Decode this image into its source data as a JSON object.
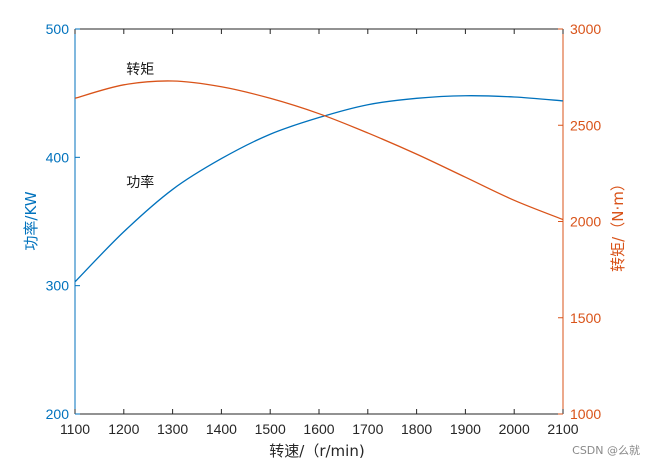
{
  "chart_data": {
    "type": "line",
    "dual_axis": true,
    "xlabel": "转速/（r/min)",
    "xlim": [
      1100,
      2100
    ],
    "xticks": [
      1100,
      1200,
      1300,
      1400,
      1500,
      1600,
      1700,
      1800,
      1900,
      2000,
      2100
    ],
    "y_left": {
      "label": "功率/KW",
      "lim": [
        200,
        500
      ],
      "ticks": [
        200,
        300,
        400,
        500
      ],
      "color": "#0072BD"
    },
    "y_right": {
      "label": "转矩/（N·m）",
      "lim": [
        1000,
        3000
      ],
      "ticks": [
        1000,
        1500,
        2000,
        2500,
        3000
      ],
      "color": "#D95319"
    },
    "grid": false,
    "series": [
      {
        "name": "功率",
        "axis": "left",
        "color": "#0072BD",
        "x": [
          1100,
          1200,
          1300,
          1400,
          1500,
          1600,
          1700,
          1800,
          1900,
          2000,
          2100
        ],
        "y": [
          303,
          342,
          375,
          399,
          418,
          431,
          441,
          446,
          448,
          447,
          444
        ]
      },
      {
        "name": "转矩",
        "axis": "right",
        "color": "#D95319",
        "x": [
          1100,
          1200,
          1300,
          1400,
          1500,
          1600,
          1700,
          1800,
          1900,
          2000,
          2100
        ],
        "y": [
          2640,
          2710,
          2730,
          2700,
          2640,
          2560,
          2460,
          2350,
          2230,
          2110,
          2010
        ]
      }
    ],
    "annotations": [
      {
        "text": "转矩",
        "x": 1205,
        "y_left": 465
      },
      {
        "text": "功率",
        "x": 1205,
        "y_left": 377
      }
    ]
  },
  "watermark": "CSDN @么就"
}
